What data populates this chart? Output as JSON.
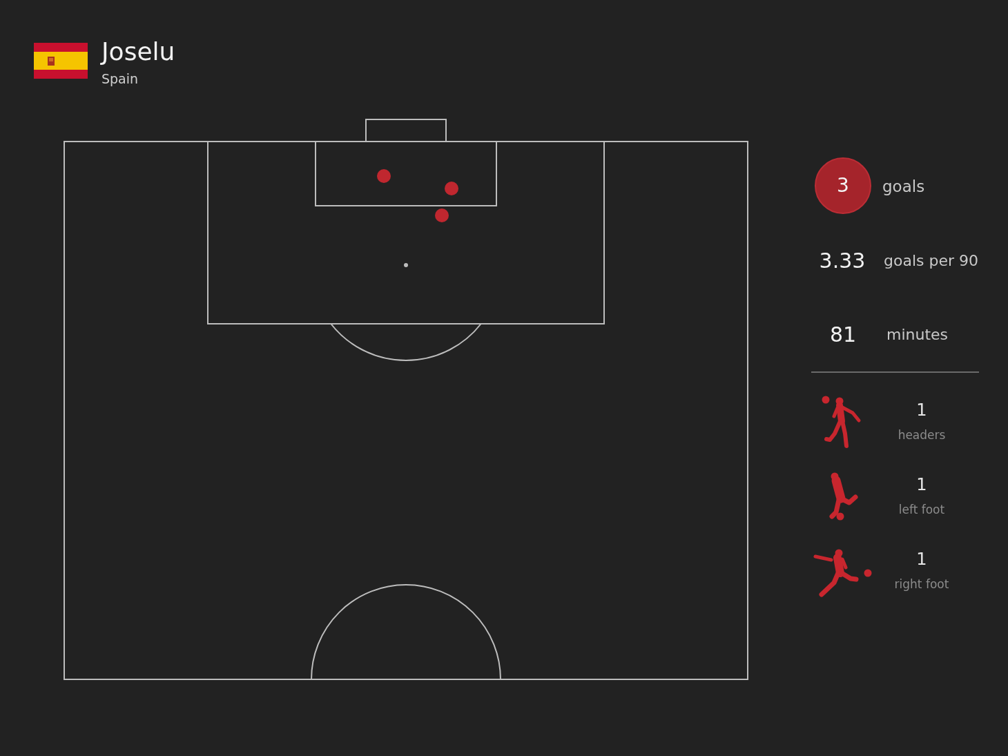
{
  "chart_data": {
    "type": "other",
    "title": "Joselu",
    "subtitle": "Spain",
    "data_labels": true,
    "categories": [
      "goals",
      "goals per 90",
      "minutes",
      "headers",
      "left foot",
      "right foot"
    ],
    "values": [
      3,
      3.33,
      81,
      1,
      1,
      1
    ]
  }
}
